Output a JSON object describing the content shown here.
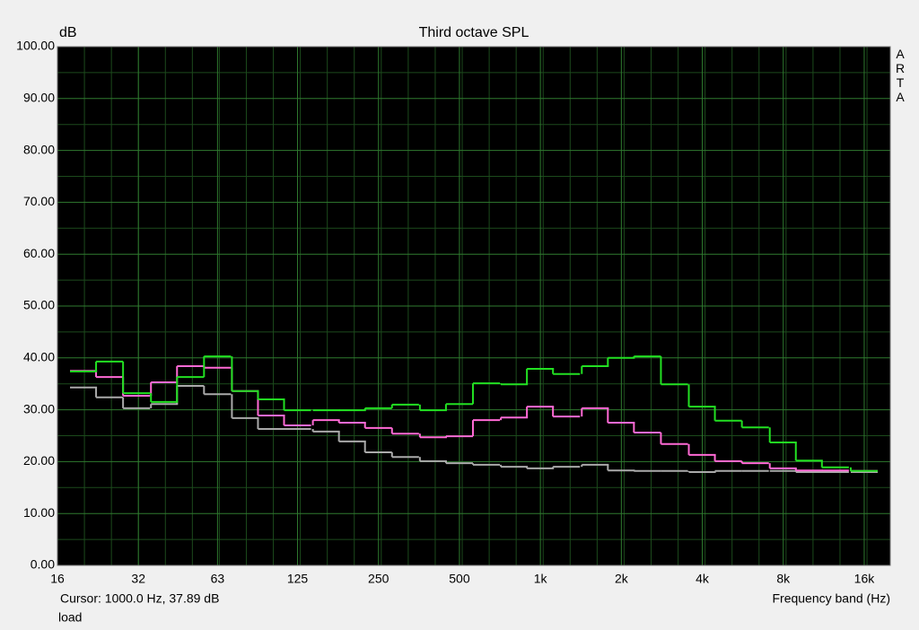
{
  "chart_data": {
    "type": "step",
    "title": "Third octave SPL",
    "y_label": "dB",
    "x_label": "Frequency band (Hz)",
    "watermark": "ARTA",
    "cursor_readout": "Cursor:  1000.0 Hz, 37.89 dB",
    "note": "load",
    "log_x": true,
    "grid": true,
    "x": [
      20,
      25,
      31.5,
      40,
      50,
      63,
      80,
      100,
      125,
      160,
      200,
      250,
      315,
      400,
      500,
      630,
      800,
      1000,
      1250,
      1600,
      2000,
      2500,
      3150,
      4000,
      5000,
      6300,
      8000,
      10000,
      12500,
      16000
    ],
    "xlim": [
      16,
      20000
    ],
    "xticks": [
      16,
      32,
      63,
      125,
      250,
      500,
      {
        "value": 1000,
        "label": "1k"
      },
      {
        "value": 2000,
        "label": "2k"
      },
      {
        "value": 4000,
        "label": "4k"
      },
      {
        "value": 8000,
        "label": "8k"
      },
      {
        "value": 16000,
        "label": "16k"
      }
    ],
    "ylim": [
      0,
      100
    ],
    "yticks": [
      {
        "value": 0,
        "label": "0.00"
      },
      {
        "value": 10,
        "label": "10.00"
      },
      {
        "value": 20,
        "label": "20.00"
      },
      {
        "value": 30,
        "label": "30.00"
      },
      {
        "value": 40,
        "label": "40.00"
      },
      {
        "value": 50,
        "label": "50.00"
      },
      {
        "value": 60,
        "label": "60.00"
      },
      {
        "value": 70,
        "label": "70.00"
      },
      {
        "value": 80,
        "label": "80.00"
      },
      {
        "value": 90,
        "label": "90.00"
      },
      {
        "value": 100,
        "label": "100.00"
      }
    ],
    "series": [
      {
        "color": "#aaaaaa",
        "values": [
          34.3,
          32.4,
          30.3,
          31.1,
          34.6,
          33.0,
          28.4,
          26.3,
          26.3,
          25.8,
          23.9,
          21.8,
          20.9,
          20.1,
          19.7,
          19.4,
          19.0,
          18.7,
          19.0,
          19.4,
          18.3,
          18.2,
          18.2,
          18.0,
          18.2,
          18.2,
          18.2,
          18.0,
          18.0,
          18.0
        ]
      },
      {
        "color": "#ff6ad5",
        "values": [
          37.5,
          36.3,
          32.7,
          35.3,
          38.4,
          38.1,
          33.6,
          28.9,
          27.0,
          28.0,
          27.5,
          26.5,
          25.4,
          24.7,
          24.9,
          28.0,
          28.5,
          30.6,
          28.7,
          30.3,
          27.5,
          25.6,
          23.4,
          21.3,
          20.1,
          19.7,
          18.7,
          18.3,
          18.3,
          18.2
        ]
      },
      {
        "color": "#22e022",
        "values": [
          37.4,
          39.3,
          33.2,
          31.5,
          36.3,
          40.3,
          33.6,
          32.0,
          29.9,
          29.9,
          29.9,
          30.3,
          31.0,
          29.9,
          31.1,
          35.1,
          34.9,
          37.9,
          36.9,
          38.4,
          40.0,
          40.3,
          34.9,
          30.6,
          27.9,
          26.6,
          23.7,
          20.2,
          18.9,
          18.2
        ]
      }
    ]
  }
}
